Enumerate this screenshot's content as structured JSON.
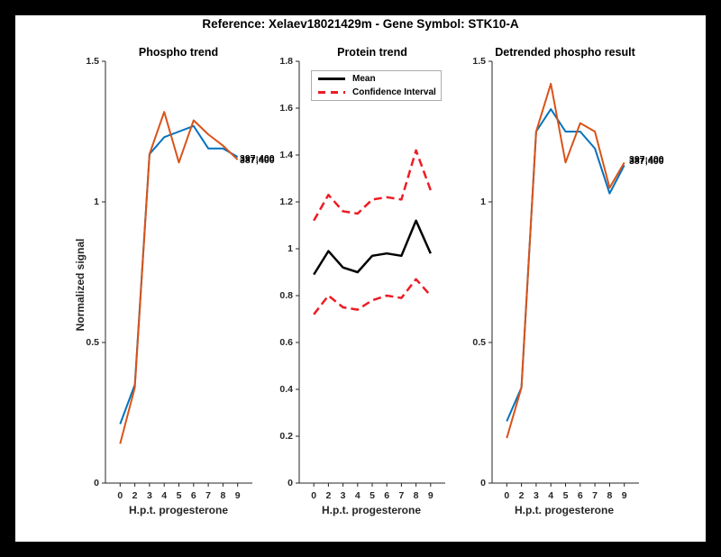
{
  "figure": {
    "title": "Reference:  Xelaev18021429m - Gene Symbol:  STK10-A"
  },
  "colors": {
    "blue": "#0072BD",
    "orange": "#D95319",
    "red": "#ED1C24",
    "black": "#000000",
    "axis": "#262626",
    "figure_background": "#ffffff",
    "frame": "#000000"
  },
  "chart_data": [
    {
      "type": "line",
      "title": "Phospho trend",
      "xlabel": "H.p.t. progesterone",
      "ylabel": "Normalized signal",
      "categories": [
        "0",
        "2",
        "3",
        "4",
        "5",
        "6",
        "7",
        "8",
        "9"
      ],
      "ylim": [
        0,
        1.5
      ],
      "yticks": [
        "0",
        "0.5",
        "1",
        "1.5"
      ],
      "ytick_values": [
        0,
        0.5,
        1,
        1.5
      ],
      "grid": false,
      "series": [
        {
          "name": "blue-line",
          "color_key": "blue",
          "style": "solid",
          "width": 2,
          "values": [
            0.21,
            0.35,
            1.17,
            1.23,
            1.25,
            1.27,
            1.19,
            1.19,
            1.16
          ]
        },
        {
          "name": "orange-line",
          "color_key": "orange",
          "style": "solid",
          "width": 2,
          "values": [
            0.14,
            0.34,
            1.17,
            1.32,
            1.14,
            1.29,
            1.24,
            1.2,
            1.15
          ]
        }
      ],
      "end_labels": [
        "397;400",
        "387;400"
      ]
    },
    {
      "type": "line",
      "title": "Protein trend",
      "xlabel": "H.p.t. progesterone",
      "ylabel": "",
      "categories": [
        "0",
        "2",
        "3",
        "4",
        "5",
        "6",
        "7",
        "8",
        "9"
      ],
      "ylim": [
        0,
        1.8
      ],
      "yticks": [
        "0",
        "0.2",
        "0.4",
        "0.6",
        "0.8",
        "1",
        "1.2",
        "1.4",
        "1.6",
        "1.8"
      ],
      "ytick_values": [
        0,
        0.2,
        0.4,
        0.6,
        0.8,
        1,
        1.2,
        1.4,
        1.6,
        1.8
      ],
      "grid": false,
      "legend": [
        {
          "label": "Mean",
          "style": "solid",
          "color_key": "black"
        },
        {
          "label": "Confidence Interval",
          "style": "dashed",
          "color_key": "red"
        }
      ],
      "series": [
        {
          "name": "mean-line",
          "color_key": "black",
          "style": "solid",
          "width": 2.5,
          "values": [
            0.89,
            0.99,
            0.92,
            0.9,
            0.97,
            0.98,
            0.97,
            1.12,
            0.98
          ]
        },
        {
          "name": "ci-upper-line",
          "color_key": "red",
          "style": "dashed",
          "width": 2.5,
          "values": [
            1.12,
            1.23,
            1.16,
            1.15,
            1.21,
            1.22,
            1.21,
            1.42,
            1.25
          ]
        },
        {
          "name": "ci-lower-line",
          "color_key": "red",
          "style": "dashed",
          "width": 2.5,
          "values": [
            0.72,
            0.8,
            0.75,
            0.74,
            0.78,
            0.8,
            0.79,
            0.87,
            0.8
          ]
        }
      ]
    },
    {
      "type": "line",
      "title": "Detrended phospho result",
      "xlabel": "H.p.t. progesterone",
      "ylabel": "",
      "categories": [
        "0",
        "2",
        "3",
        "4",
        "5",
        "6",
        "7",
        "8",
        "9"
      ],
      "ylim": [
        0,
        1.5
      ],
      "yticks": [
        "0",
        "0.5",
        "1",
        "1.5"
      ],
      "ytick_values": [
        0,
        0.5,
        1,
        1.5
      ],
      "grid": false,
      "series": [
        {
          "name": "blue-line",
          "color_key": "blue",
          "style": "solid",
          "width": 2,
          "values": [
            0.22,
            0.34,
            1.25,
            1.33,
            1.25,
            1.25,
            1.19,
            1.03,
            1.13
          ]
        },
        {
          "name": "orange-line",
          "color_key": "orange",
          "style": "solid",
          "width": 2,
          "values": [
            0.16,
            0.34,
            1.25,
            1.42,
            1.14,
            1.28,
            1.25,
            1.05,
            1.14
          ]
        }
      ],
      "end_labels": [
        "397;400",
        "387;400"
      ]
    }
  ]
}
